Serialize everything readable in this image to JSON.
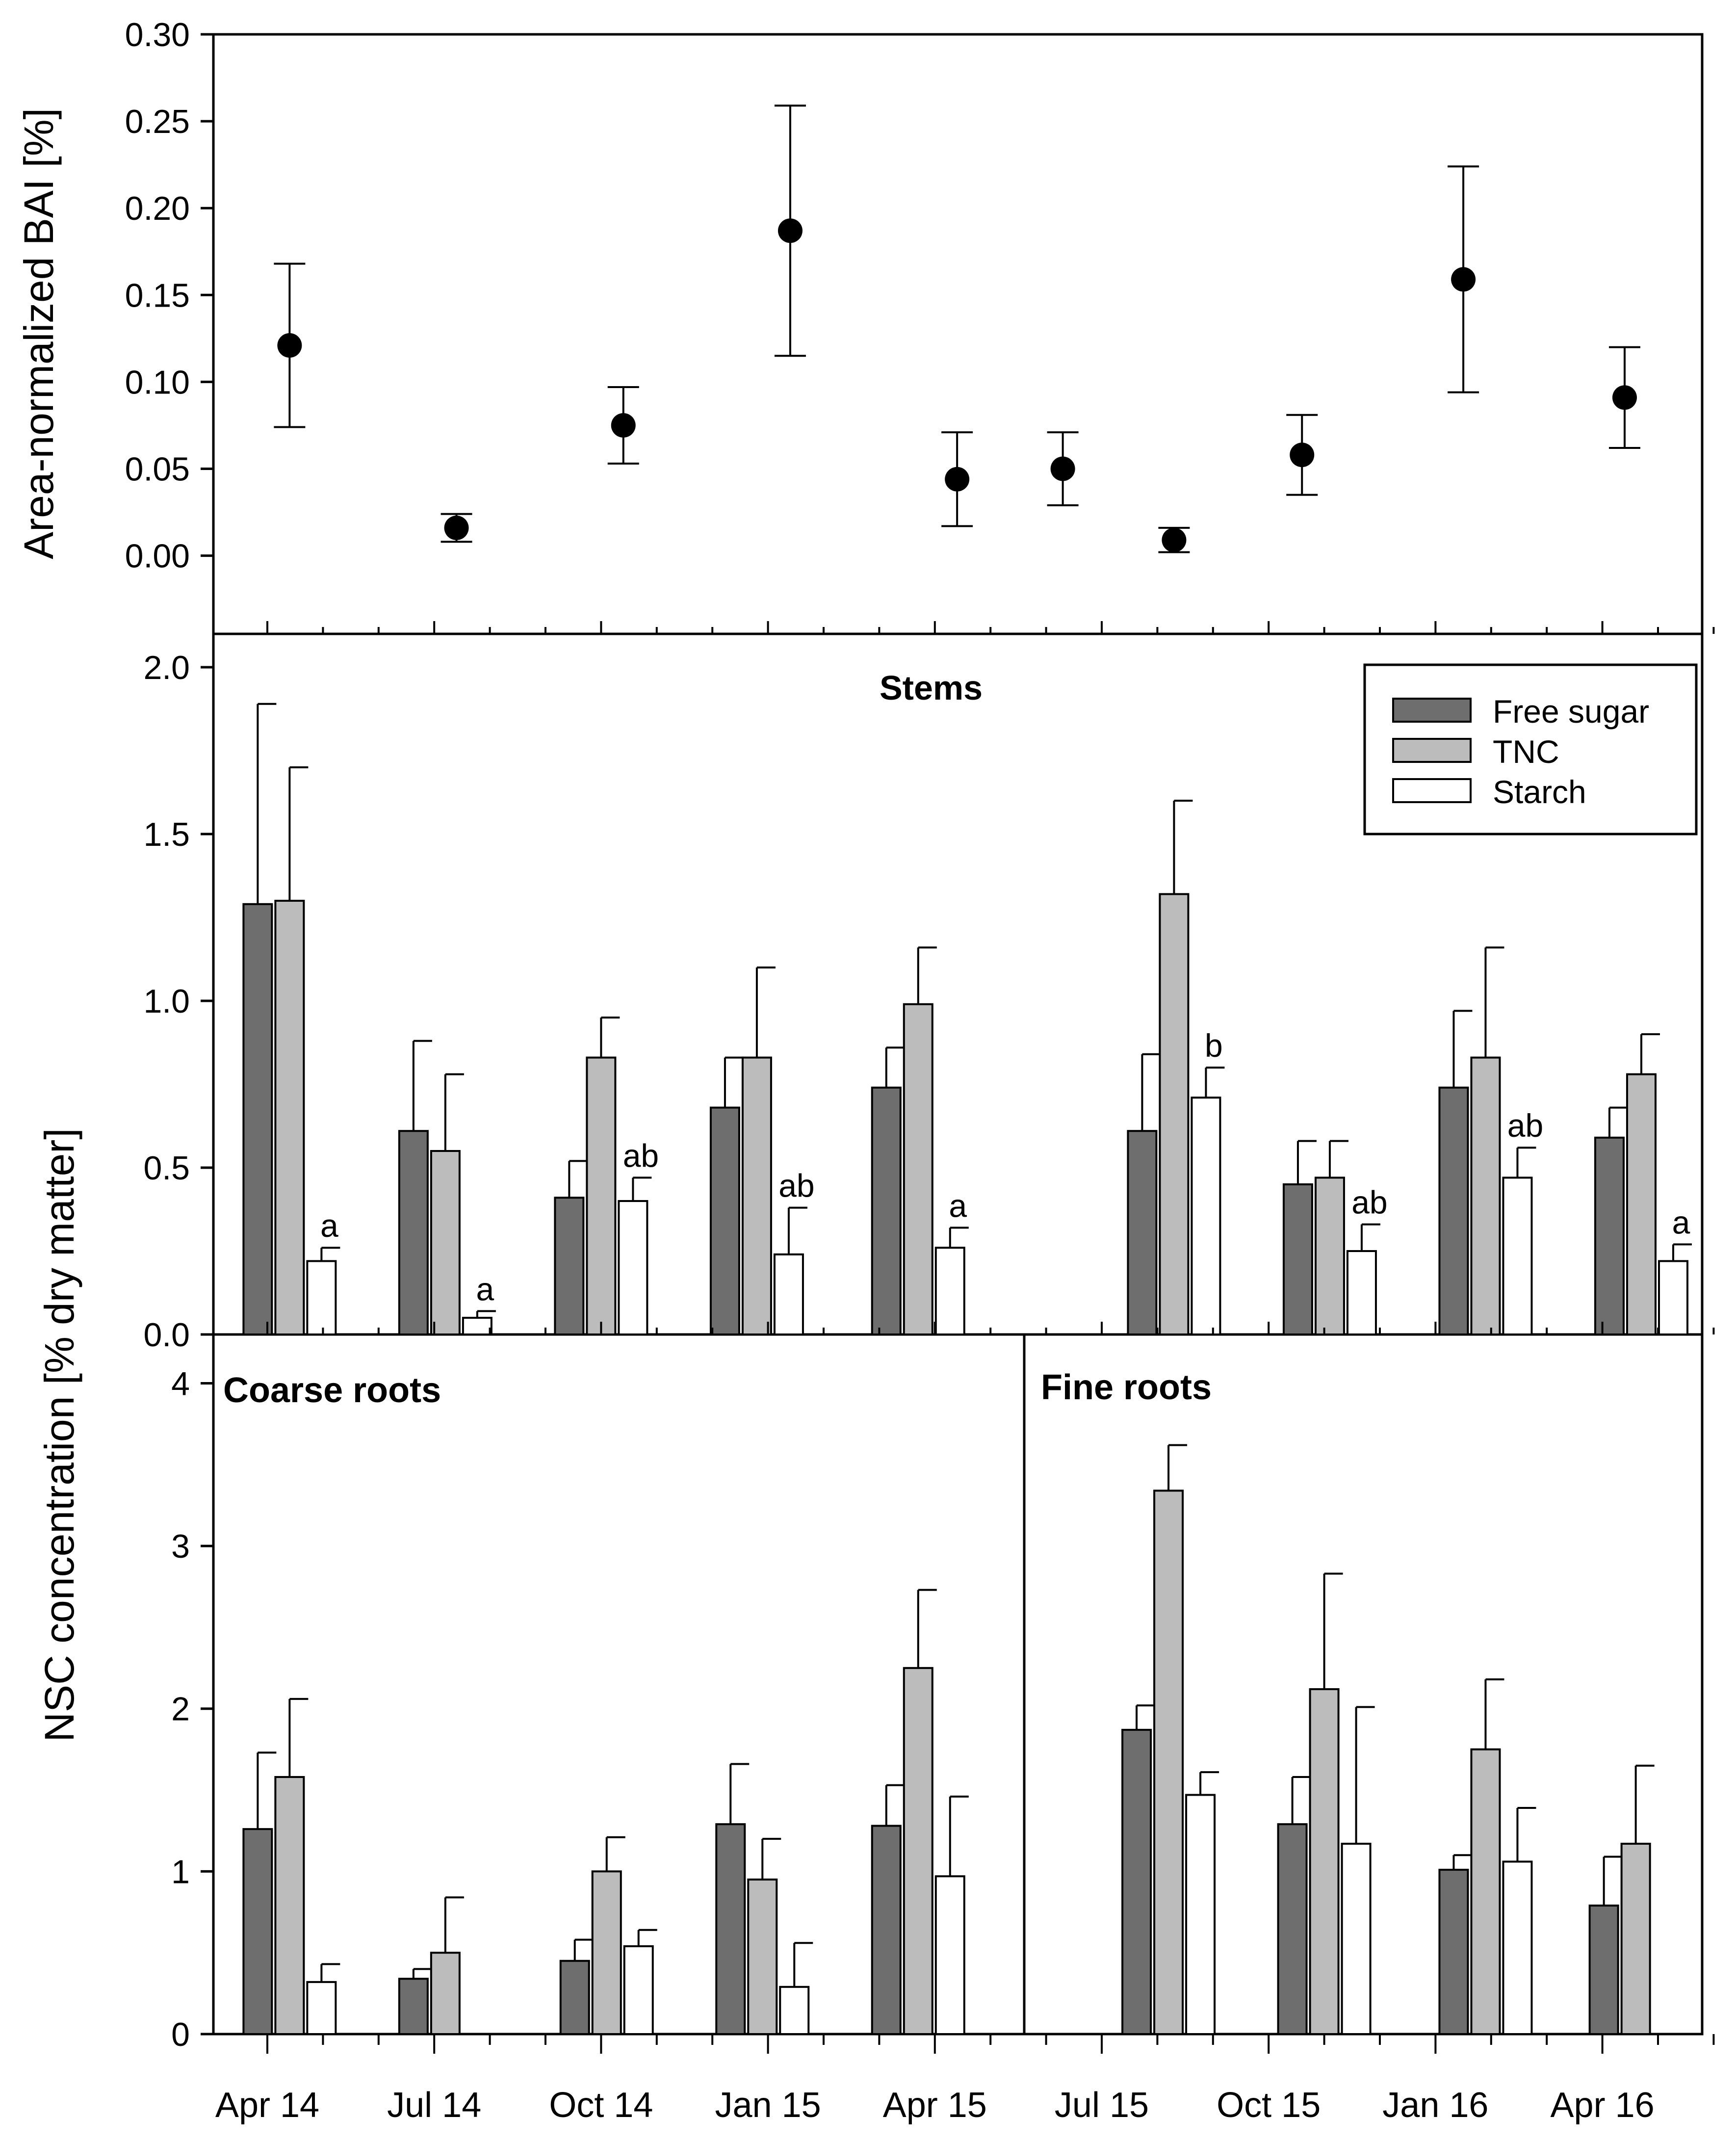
{
  "chart_data": [
    {
      "type": "scatter",
      "panel": "top",
      "ylabel": "Area-normalized BAI [%]",
      "ylim": [
        -0.045,
        0.3
      ],
      "yticks": [
        "0.00",
        "0.05",
        "0.10",
        "0.15",
        "0.20",
        "0.25",
        "0.30"
      ],
      "points": [
        {
          "t": 1.4,
          "y": 0.121,
          "err": 0.047
        },
        {
          "t": 4.4,
          "y": 0.016,
          "err": 0.008
        },
        {
          "t": 7.4,
          "y": 0.075,
          "err": 0.022
        },
        {
          "t": 10.4,
          "y": 0.187,
          "err": 0.072
        },
        {
          "t": 13.4,
          "y": 0.044,
          "err": 0.027
        },
        {
          "t": 15.3,
          "y": 0.05,
          "err": 0.021
        },
        {
          "t": 17.3,
          "y": 0.009,
          "err": 0.007
        },
        {
          "t": 19.6,
          "y": 0.058,
          "err": 0.023
        },
        {
          "t": 22.5,
          "y": 0.159,
          "err": 0.065
        },
        {
          "t": 25.4,
          "y": 0.091,
          "err": 0.029
        }
      ]
    },
    {
      "type": "bar",
      "panel": "stems",
      "title": "Stems",
      "ylim": [
        0,
        2.0
      ],
      "yticks": [
        "0.0",
        "0.5",
        "1.0",
        "1.5",
        "2.0"
      ],
      "series": [
        {
          "name": "Free sugar",
          "values": [
            1.29,
            0.61,
            0.41,
            0.68,
            0.74,
            0.61,
            0.45,
            0.74,
            0.59
          ],
          "errors": [
            0.6,
            0.27,
            0.11,
            0.15,
            0.12,
            0.23,
            0.13,
            0.23,
            0.09
          ]
        },
        {
          "name": "TNC",
          "values": [
            1.3,
            0.55,
            0.83,
            0.83,
            0.99,
            1.32,
            0.47,
            0.83,
            0.78
          ],
          "errors": [
            0.4,
            0.23,
            0.12,
            0.27,
            0.17,
            0.28,
            0.11,
            0.33,
            0.12
          ]
        },
        {
          "name": "Starch",
          "values": [
            0.22,
            0.05,
            0.4,
            0.24,
            0.26,
            0.71,
            0.25,
            0.47,
            0.22
          ],
          "errors": [
            0.04,
            0.02,
            0.07,
            0.14,
            0.06,
            0.09,
            0.08,
            0.09,
            0.05
          ]
        }
      ],
      "centers_t": [
        1.4,
        4.2,
        7.0,
        9.8,
        12.7,
        17.3,
        20.1,
        22.9,
        25.7
      ],
      "starch_letters": [
        "a",
        "a",
        "ab",
        "ab",
        "a",
        "b",
        "ab",
        "ab",
        "a"
      ]
    },
    {
      "type": "bar",
      "panel": "coarse-roots",
      "title": "Coarse roots",
      "ylim": [
        0,
        4.3
      ],
      "yticks": [
        "0",
        "1",
        "2",
        "3",
        "4"
      ],
      "series": [
        {
          "name": "Free sugar",
          "values": [
            1.26,
            0.34,
            0.45,
            1.29,
            1.28
          ],
          "errors": [
            0.47,
            0.06,
            0.13,
            0.37,
            0.25
          ]
        },
        {
          "name": "TNC",
          "values": [
            1.58,
            0.5,
            1.0,
            0.95,
            2.25
          ],
          "errors": [
            0.48,
            0.34,
            0.21,
            0.25,
            0.48
          ]
        },
        {
          "name": "Starch",
          "values": [
            0.32,
            null,
            0.54,
            0.29,
            0.97
          ],
          "errors": [
            0.11,
            null,
            0.1,
            0.27,
            0.49
          ]
        }
      ],
      "centers_t": [
        1.4,
        4.2,
        7.1,
        9.9,
        12.7
      ]
    },
    {
      "type": "bar",
      "panel": "fine-roots",
      "title": "Fine roots",
      "ylim": [
        0,
        4.3
      ],
      "series": [
        {
          "name": "Free sugar",
          "values": [
            1.87,
            1.29,
            1.01,
            0.79
          ],
          "errors": [
            0.15,
            0.29,
            0.09,
            0.3
          ]
        },
        {
          "name": "TNC",
          "values": [
            3.34,
            2.12,
            1.75,
            1.17
          ],
          "errors": [
            0.28,
            0.71,
            0.43,
            0.48
          ]
        },
        {
          "name": "Starch",
          "values": [
            1.47,
            1.17,
            1.06,
            null
          ],
          "errors": [
            0.14,
            0.84,
            0.33,
            null
          ]
        }
      ],
      "centers_t": [
        17.2,
        20.0,
        22.9,
        25.6
      ]
    }
  ],
  "shared": {
    "ylabel_bottom": "NSC concentration [% dry matter]",
    "x_tick_labels": [
      "Apr 14",
      "Jul 14",
      "Oct 14",
      "Jan 15",
      "Apr 15",
      "Jul 15",
      "Oct 15",
      "Jan 16",
      "Apr 16"
    ],
    "x_tick_t": [
      1,
      4,
      7,
      10,
      13,
      16,
      19,
      22,
      25
    ]
  },
  "legend": {
    "items": [
      {
        "label": "Free sugar",
        "color": "#6e6e6e"
      },
      {
        "label": "TNC",
        "color": "#bcbcbc"
      },
      {
        "label": "Starch",
        "color": "#ffffff"
      }
    ]
  }
}
